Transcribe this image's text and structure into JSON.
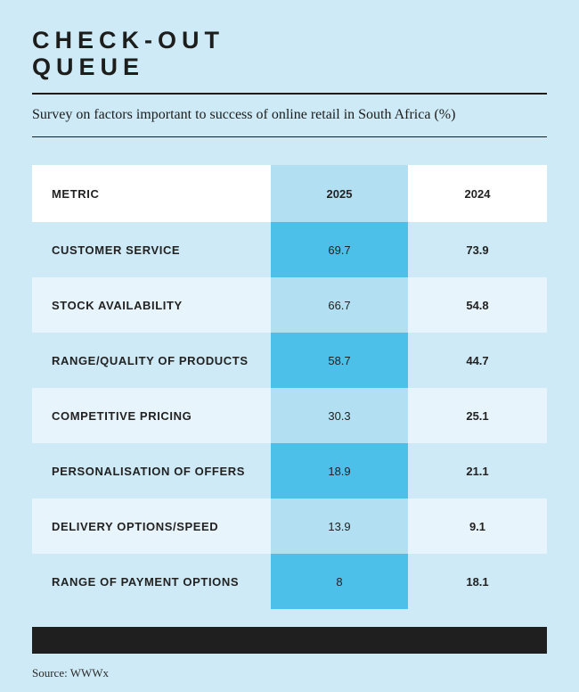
{
  "page": {
    "colors": {
      "bg": "#cdeaf6",
      "bright": "#4dc0ea",
      "light": "#b2e0f2",
      "pale": "#e7f4fb",
      "bar": "#1f1f1f"
    }
  },
  "header": {
    "title_lines": [
      "CHECK-OUT",
      "QUEUE"
    ],
    "subtitle": "Survey on factors important to success of online retail in South Africa (%)"
  },
  "table": {
    "columns": [
      "METRIC",
      "2025",
      "2024"
    ],
    "rows": [
      {
        "metric": "CUSTOMER SERVICE",
        "y2025": "69.7",
        "y2024": "73.9"
      },
      {
        "metric": "STOCK AVAILABILITY",
        "y2025": "66.7",
        "y2024": "54.8"
      },
      {
        "metric": "RANGE/QUALITY OF PRODUCTS",
        "y2025": "58.7",
        "y2024": "44.7"
      },
      {
        "metric": "COMPETITIVE PRICING",
        "y2025": "30.3",
        "y2024": "25.1"
      },
      {
        "metric": "PERSONALISATION OF OFFERS",
        "y2025": "18.9",
        "y2024": "21.1"
      },
      {
        "metric": "DELIVERY OPTIONS/SPEED",
        "y2025": "13.9",
        "y2024": "9.1"
      },
      {
        "metric": "RANGE OF PAYMENT OPTIONS",
        "y2025": "8",
        "y2024": "18.1"
      }
    ]
  },
  "footer": {
    "source": "Source: WWWx"
  },
  "chart_data": {
    "type": "table",
    "title": "CHECK-OUT QUEUE",
    "subtitle": "Survey on factors important to success of online retail in South Africa (%)",
    "categories": [
      "Customer service",
      "Stock availability",
      "Range/quality of products",
      "Competitive pricing",
      "Personalisation of offers",
      "Delivery options/speed",
      "Range of payment options"
    ],
    "series": [
      {
        "name": "2025",
        "values": [
          69.7,
          66.7,
          58.7,
          30.3,
          18.9,
          13.9,
          8
        ]
      },
      {
        "name": "2024",
        "values": [
          73.9,
          54.8,
          44.7,
          25.1,
          21.1,
          9.1,
          18.1
        ]
      }
    ],
    "highlight_column": "2025",
    "source": "WWWx"
  }
}
